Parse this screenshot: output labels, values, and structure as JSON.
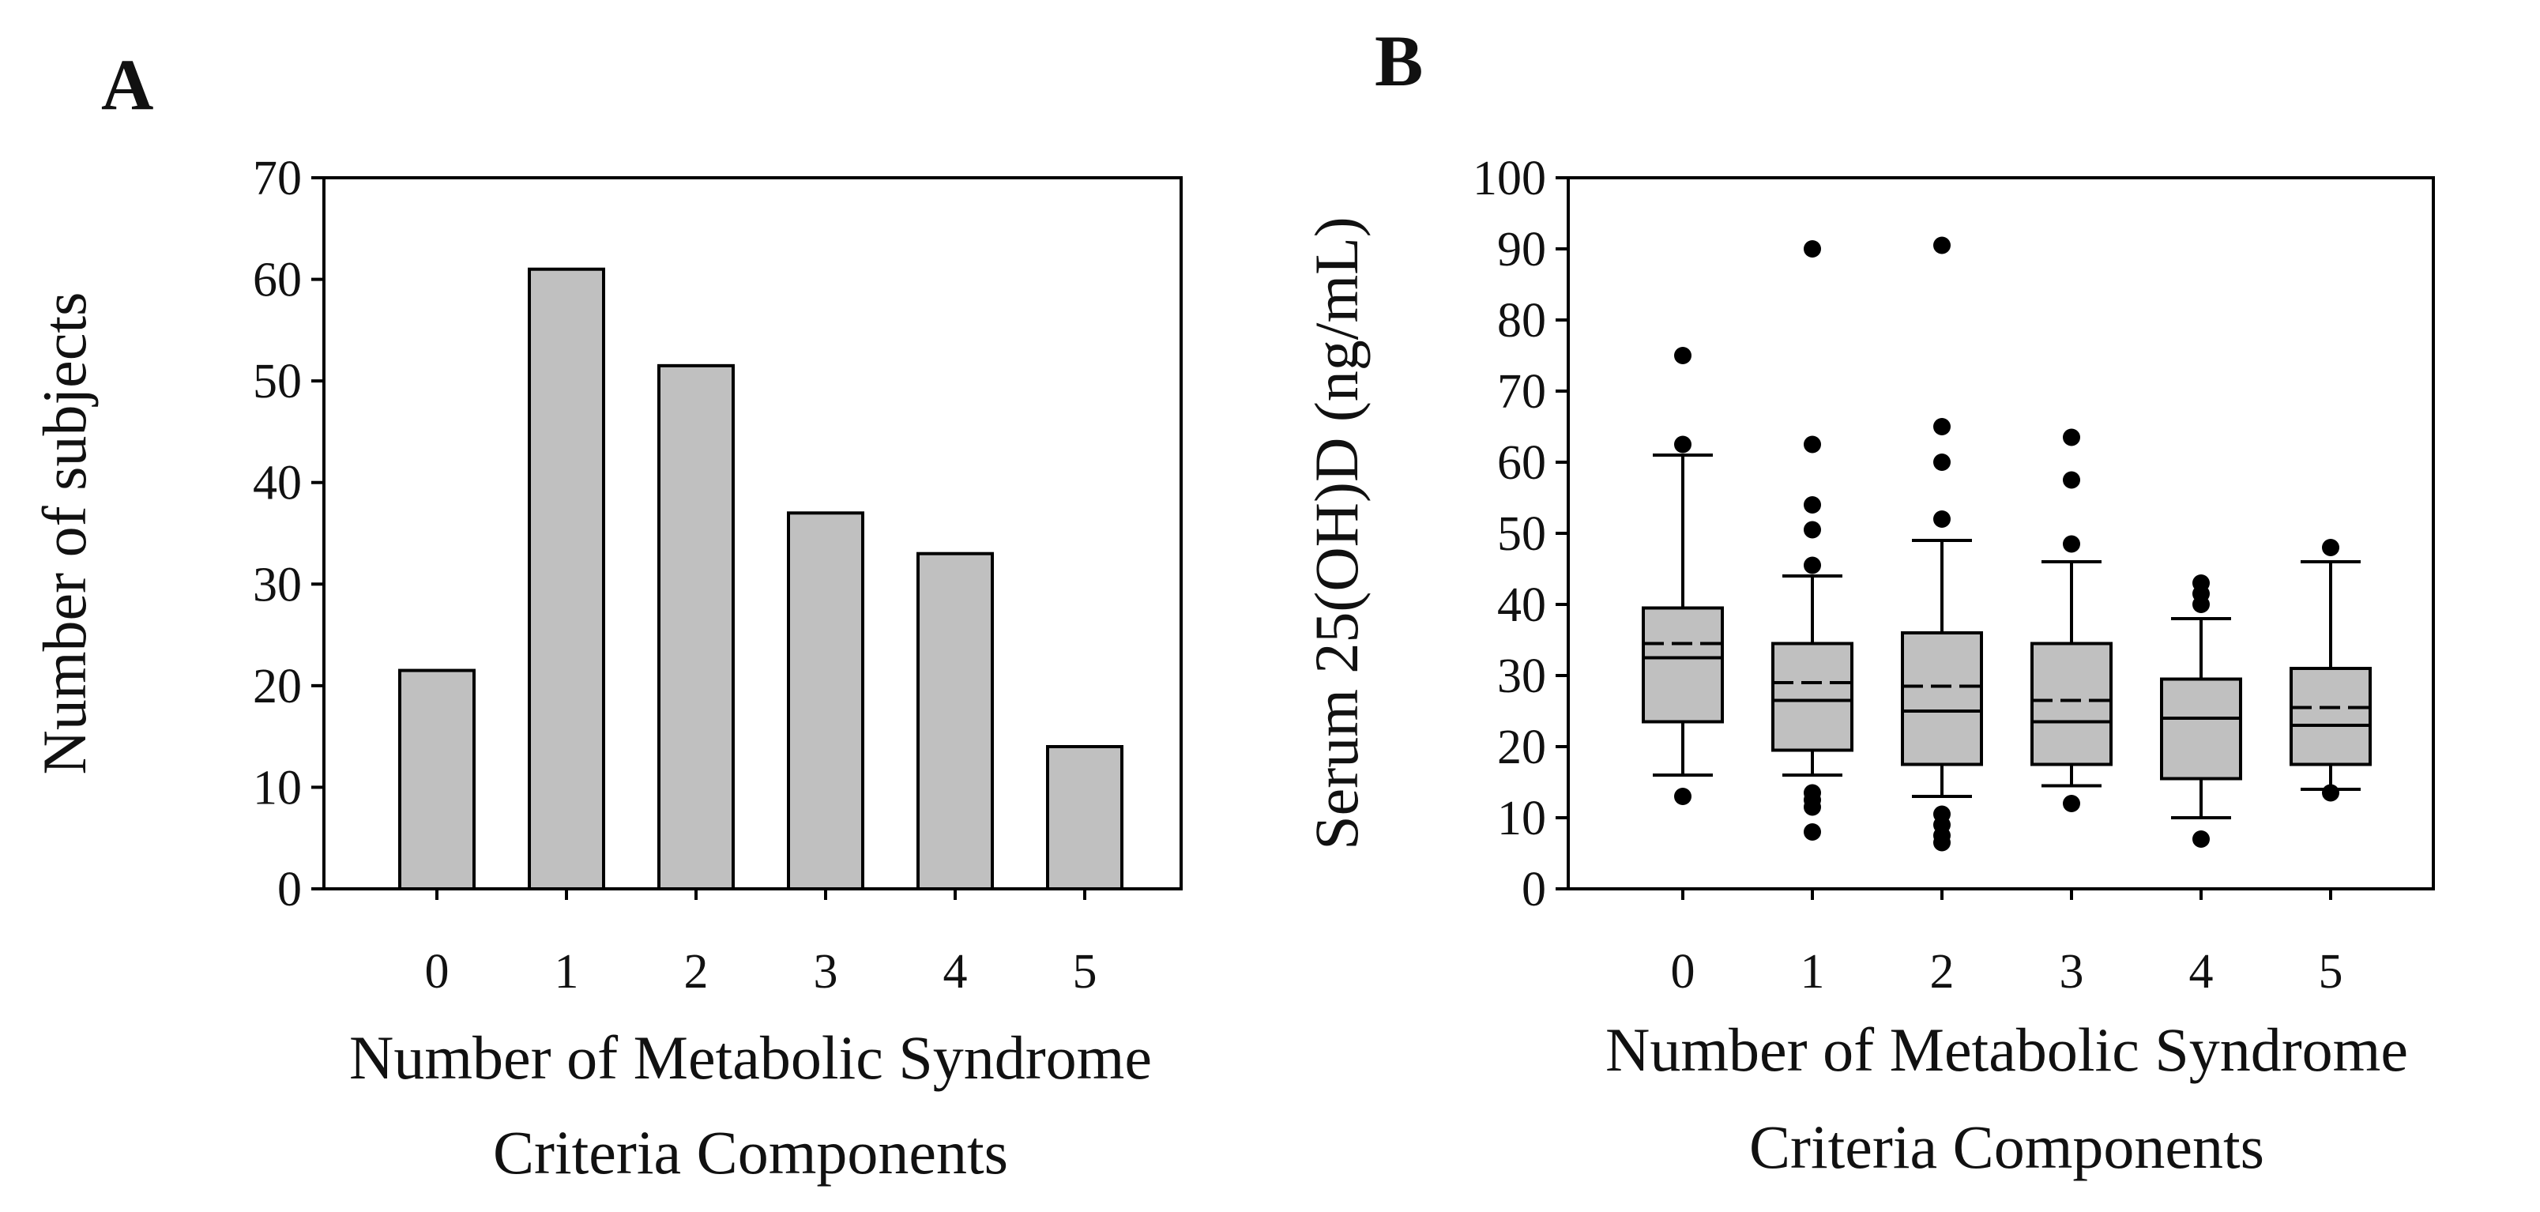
{
  "chart_data": [
    {
      "panel": "A",
      "type": "bar",
      "categories": [
        "0",
        "1",
        "2",
        "3",
        "4",
        "5"
      ],
      "values": [
        21.5,
        61,
        51.5,
        37,
        33,
        14
      ],
      "xlabel_lines": [
        "Number of Metabolic Syndrome",
        "Criteria Components"
      ],
      "ylabel": "Number of subjects",
      "ylim": [
        0,
        70
      ],
      "yticks": [
        "0",
        "10",
        "20",
        "30",
        "40",
        "50",
        "60",
        "70"
      ],
      "bar_color": "#c0c0c0"
    },
    {
      "panel": "B",
      "type": "box",
      "categories": [
        "0",
        "1",
        "2",
        "3",
        "4",
        "5"
      ],
      "xlabel_lines": [
        "Number of Metabolic Syndrome",
        "Criteria Components"
      ],
      "ylabel": "Serum 25(OH)D (ng/mL)",
      "ylim": [
        0,
        100
      ],
      "yticks": [
        "0",
        "10",
        "20",
        "30",
        "40",
        "50",
        "60",
        "70",
        "80",
        "90",
        "100"
      ],
      "box_color": "#c0c0c0",
      "boxes": [
        {
          "category": "0",
          "whisker_low": 16,
          "q1": 23.5,
          "median": 32.5,
          "mean": 34.5,
          "q3": 39.5,
          "whisker_high": 61,
          "outliers": [
            13,
            62.5,
            75
          ]
        },
        {
          "category": "1",
          "whisker_low": 16,
          "q1": 19.5,
          "median": 26.5,
          "mean": 29,
          "q3": 34.5,
          "whisker_high": 44,
          "outliers": [
            8,
            11.5,
            12.5,
            13.5,
            45.5,
            50.5,
            54,
            62.5,
            90
          ]
        },
        {
          "category": "2",
          "whisker_low": 13,
          "q1": 17.5,
          "median": 25,
          "mean": 28.5,
          "q3": 36,
          "whisker_high": 49,
          "outliers": [
            6.5,
            7.5,
            9,
            10.5,
            52,
            60,
            65,
            90.5
          ]
        },
        {
          "category": "3",
          "whisker_low": 14.5,
          "q1": 17.5,
          "median": 23.5,
          "mean": 26.5,
          "q3": 34.5,
          "whisker_high": 46,
          "outliers": [
            12,
            48.5,
            57.5,
            63.5
          ]
        },
        {
          "category": "4",
          "whisker_low": 10,
          "q1": 15.5,
          "median": 24,
          "mean": 24,
          "q3": 29.5,
          "whisker_high": 38,
          "outliers": [
            7,
            40,
            41.5,
            43
          ]
        },
        {
          "category": "5",
          "whisker_low": 14,
          "q1": 17.5,
          "median": 23,
          "mean": 25.5,
          "q3": 31,
          "whisker_high": 46,
          "outliers": [
            13.5,
            48
          ]
        }
      ]
    }
  ]
}
